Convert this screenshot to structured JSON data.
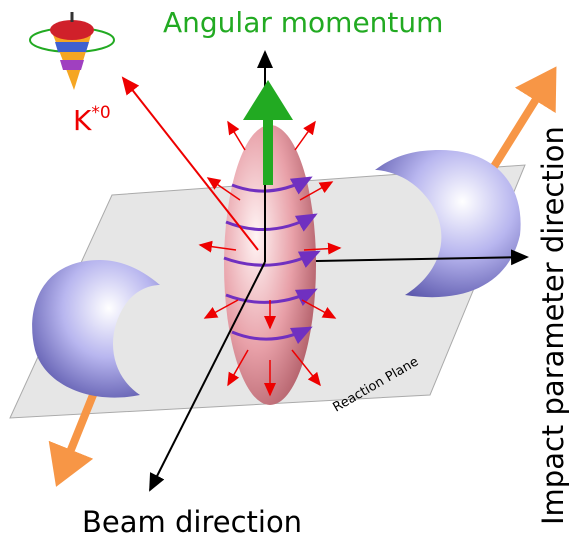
{
  "labels": {
    "angular_momentum": "Angular momentum",
    "particle": {
      "symbol": "K",
      "superscript": "*0"
    },
    "impact_parameter": "Impact parameter direction",
    "reaction_plane": "Reaction Plane",
    "beam": "Beam direction"
  }
}
